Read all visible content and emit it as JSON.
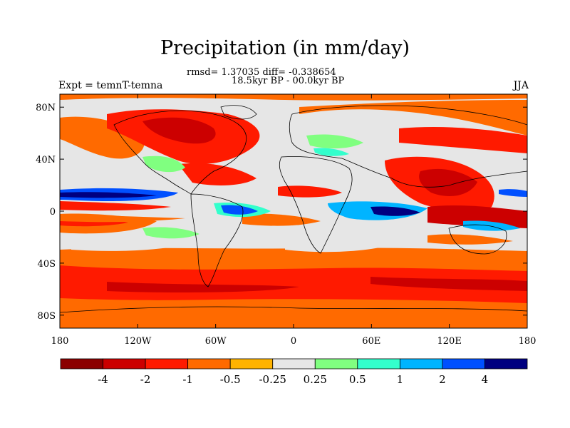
{
  "title": "Precipitation (in mm/day)",
  "stats": "rmsd= 1.37035 diff= -0.338654",
  "period": "18.5kyr BP - 00.0kyr BP",
  "experiment": "Expt = temnT-temna",
  "season": "JJA",
  "axes": {
    "y_ticks": [
      "80N",
      "40N",
      "0",
      "40S",
      "80S"
    ],
    "y_values": [
      80,
      40,
      0,
      -40,
      -80
    ],
    "x_ticks": [
      "180",
      "120W",
      "60W",
      "0",
      "60E",
      "120E",
      "180"
    ],
    "x_values": [
      -180,
      -120,
      -60,
      0,
      60,
      120,
      180
    ]
  },
  "colorbar": {
    "labels": [
      "-4",
      "-2",
      "-1",
      "-0.5",
      "-0.25",
      "0.25",
      "0.5",
      "1",
      "2",
      "4"
    ],
    "colors": [
      "#8b0000",
      "#cc0000",
      "#ff1a00",
      "#ff6a00",
      "#ffb300",
      "#e6e6e6",
      "#80ff80",
      "#33ffcc",
      "#00b4ff",
      "#0050ff",
      "#000080"
    ]
  },
  "map_layers": {
    "background": "#e6e6e6",
    "coastline_color": "#000000"
  }
}
